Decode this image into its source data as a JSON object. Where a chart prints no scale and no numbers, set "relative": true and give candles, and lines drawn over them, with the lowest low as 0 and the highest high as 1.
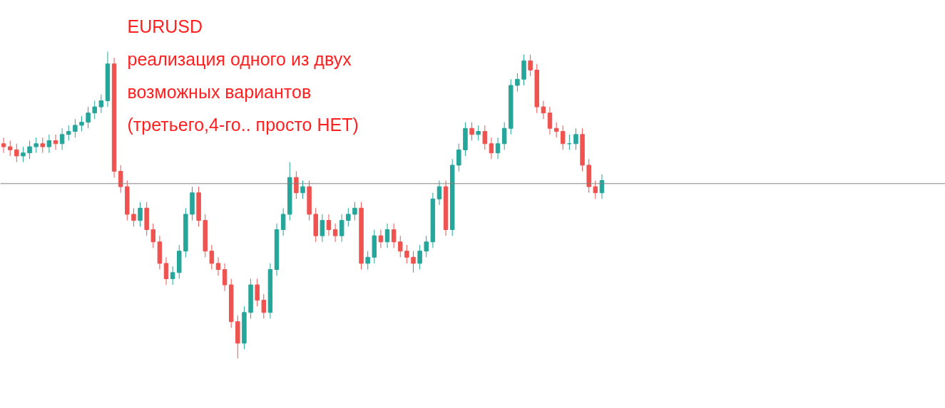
{
  "chart_data": {
    "type": "candlestick",
    "relative": true,
    "title": "EURUSD",
    "annotations": [
      "реализация одного из двух",
      "возможных вариантов",
      "(третьего,4-го.. просто НЕТ)"
    ],
    "colors": [
      "#ef5350",
      "#ef5350",
      "#ef5350",
      "#26a69a",
      "#26a69a",
      "#26a69a",
      "#ef5350",
      "#26a69a",
      "#ef5350",
      "#26a69a",
      "#26a69a",
      "#26a69a",
      "#26a69a",
      "#26a69a",
      "#26a69a",
      "#26a69a",
      "#26a69a",
      "#ef5350",
      "#ef5350",
      "#ef5350",
      "#ef5350",
      "#26a69a",
      "#ef5350",
      "#ef5350",
      "#ef5350",
      "#ef5350",
      "#26a69a",
      "#26a69a",
      "#26a69a",
      "#26a69a",
      "#ef5350",
      "#ef5350",
      "#ef5350",
      "#ef5350",
      "#ef5350",
      "#ef5350",
      "#ef5350",
      "#26a69a",
      "#26a69a",
      "#ef5350",
      "#ef5350",
      "#26a69a",
      "#26a69a",
      "#26a69a",
      "#26a69a",
      "#ef5350",
      "#26a69a",
      "#ef5350",
      "#ef5350",
      "#26a69a",
      "#ef5350",
      "#ef5350",
      "#26a69a",
      "#26a69a",
      "#26a69a",
      "#ef5350",
      "#26a69a",
      "#26a69a",
      "#ef5350",
      "#26a69a",
      "#ef5350",
      "#ef5350",
      "#ef5350",
      "#ef5350",
      "#26a69a",
      "#26a69a",
      "#26a69a",
      "#26a69a",
      "#ef5350",
      "#26a69a",
      "#26a69a",
      "#26a69a",
      "#ef5350",
      "#26a69a",
      "#ef5350",
      "#ef5350",
      "#26a69a",
      "#26a69a",
      "#26a69a",
      "#26a69a",
      "#26a69a",
      "#ef5350",
      "#ef5350",
      "#ef5350",
      "#ef5350",
      "#ef5350",
      "#ef5350",
      "#26a69a",
      "#26a69a",
      "#ef5350",
      "#ef5350",
      "#ef5350",
      "#26a69a"
    ],
    "categories": [
      null,
      null,
      null,
      null,
      null,
      null,
      null,
      null,
      null,
      null,
      null,
      null,
      null,
      null,
      null,
      null,
      null,
      null,
      null,
      null,
      null,
      null,
      null,
      null,
      null,
      null,
      null,
      null,
      null,
      null,
      null,
      null,
      null,
      null,
      null,
      null,
      null,
      null,
      null,
      null,
      null,
      null,
      null,
      null,
      null,
      null,
      null,
      null,
      null,
      null,
      null,
      null,
      null,
      null,
      null,
      null,
      null,
      null,
      null,
      null,
      null,
      null,
      null,
      null,
      null,
      null,
      null,
      null,
      null,
      null,
      null,
      null,
      null,
      null,
      null,
      null,
      null,
      null,
      null,
      null,
      null,
      null,
      null,
      null,
      null,
      null,
      null,
      null,
      null,
      null,
      null,
      null,
      null
    ],
    "ref_lines": [
      {
        "axis": "y",
        "value": 0.57,
        "color": "#808080"
      }
    ],
    "ohlc": [
      [
        0.7,
        0.72,
        0.67,
        0.69
      ],
      [
        0.69,
        0.71,
        0.66,
        0.68
      ],
      [
        0.68,
        0.7,
        0.64,
        0.66
      ],
      [
        0.66,
        0.69,
        0.64,
        0.67
      ],
      [
        0.67,
        0.71,
        0.65,
        0.69
      ],
      [
        0.69,
        0.72,
        0.67,
        0.7
      ],
      [
        0.7,
        0.72,
        0.67,
        0.69
      ],
      [
        0.69,
        0.73,
        0.67,
        0.71
      ],
      [
        0.71,
        0.73,
        0.68,
        0.7
      ],
      [
        0.7,
        0.75,
        0.68,
        0.73
      ],
      [
        0.73,
        0.76,
        0.71,
        0.74
      ],
      [
        0.74,
        0.78,
        0.72,
        0.76
      ],
      [
        0.76,
        0.79,
        0.74,
        0.77
      ],
      [
        0.77,
        0.82,
        0.75,
        0.8
      ],
      [
        0.8,
        0.84,
        0.78,
        0.82
      ],
      [
        0.82,
        0.86,
        0.8,
        0.84
      ],
      [
        0.84,
        1.0,
        0.82,
        0.96
      ],
      [
        0.96,
        0.98,
        0.59,
        0.61
      ],
      [
        0.61,
        0.63,
        0.54,
        0.56
      ],
      [
        0.56,
        0.58,
        0.45,
        0.47
      ],
      [
        0.47,
        0.49,
        0.43,
        0.45
      ],
      [
        0.45,
        0.51,
        0.43,
        0.49
      ],
      [
        0.49,
        0.51,
        0.4,
        0.42
      ],
      [
        0.42,
        0.44,
        0.36,
        0.38
      ],
      [
        0.38,
        0.4,
        0.29,
        0.31
      ],
      [
        0.31,
        0.33,
        0.24,
        0.26
      ],
      [
        0.26,
        0.3,
        0.24,
        0.28
      ],
      [
        0.28,
        0.37,
        0.26,
        0.35
      ],
      [
        0.35,
        0.49,
        0.33,
        0.47
      ],
      [
        0.47,
        0.56,
        0.45,
        0.54
      ],
      [
        0.54,
        0.56,
        0.43,
        0.45
      ],
      [
        0.45,
        0.47,
        0.33,
        0.35
      ],
      [
        0.35,
        0.37,
        0.29,
        0.31
      ],
      [
        0.31,
        0.33,
        0.27,
        0.29
      ],
      [
        0.29,
        0.31,
        0.22,
        0.24
      ],
      [
        0.24,
        0.26,
        0.1,
        0.12
      ],
      [
        0.12,
        0.14,
        0.0,
        0.05
      ],
      [
        0.05,
        0.17,
        0.03,
        0.15
      ],
      [
        0.15,
        0.26,
        0.13,
        0.24
      ],
      [
        0.24,
        0.26,
        0.17,
        0.19
      ],
      [
        0.19,
        0.21,
        0.13,
        0.15
      ],
      [
        0.15,
        0.31,
        0.13,
        0.29
      ],
      [
        0.29,
        0.44,
        0.27,
        0.42
      ],
      [
        0.42,
        0.49,
        0.4,
        0.47
      ],
      [
        0.47,
        0.64,
        0.45,
        0.59
      ],
      [
        0.59,
        0.61,
        0.52,
        0.54
      ],
      [
        0.54,
        0.58,
        0.52,
        0.56
      ],
      [
        0.56,
        0.58,
        0.45,
        0.47
      ],
      [
        0.47,
        0.49,
        0.38,
        0.4
      ],
      [
        0.4,
        0.47,
        0.38,
        0.45
      ],
      [
        0.45,
        0.47,
        0.4,
        0.42
      ],
      [
        0.42,
        0.44,
        0.38,
        0.4
      ],
      [
        0.4,
        0.47,
        0.38,
        0.45
      ],
      [
        0.45,
        0.49,
        0.43,
        0.47
      ],
      [
        0.47,
        0.51,
        0.45,
        0.49
      ],
      [
        0.49,
        0.51,
        0.29,
        0.31
      ],
      [
        0.31,
        0.35,
        0.29,
        0.33
      ],
      [
        0.33,
        0.42,
        0.31,
        0.4
      ],
      [
        0.4,
        0.42,
        0.36,
        0.38
      ],
      [
        0.38,
        0.44,
        0.36,
        0.42
      ],
      [
        0.42,
        0.44,
        0.36,
        0.38
      ],
      [
        0.38,
        0.4,
        0.33,
        0.35
      ],
      [
        0.35,
        0.37,
        0.31,
        0.33
      ],
      [
        0.33,
        0.35,
        0.28,
        0.31
      ],
      [
        0.31,
        0.37,
        0.29,
        0.35
      ],
      [
        0.35,
        0.4,
        0.33,
        0.38
      ],
      [
        0.38,
        0.54,
        0.36,
        0.52
      ],
      [
        0.52,
        0.58,
        0.5,
        0.56
      ],
      [
        0.56,
        0.58,
        0.4,
        0.42
      ],
      [
        0.42,
        0.65,
        0.4,
        0.63
      ],
      [
        0.63,
        0.7,
        0.61,
        0.68
      ],
      [
        0.68,
        0.77,
        0.66,
        0.75
      ],
      [
        0.75,
        0.77,
        0.71,
        0.73
      ],
      [
        0.73,
        0.76,
        0.71,
        0.74
      ],
      [
        0.74,
        0.76,
        0.68,
        0.7
      ],
      [
        0.7,
        0.72,
        0.65,
        0.67
      ],
      [
        0.67,
        0.72,
        0.65,
        0.7
      ],
      [
        0.7,
        0.77,
        0.68,
        0.75
      ],
      [
        0.75,
        0.91,
        0.73,
        0.89
      ],
      [
        0.89,
        0.93,
        0.87,
        0.91
      ],
      [
        0.91,
        0.99,
        0.89,
        0.97
      ],
      [
        0.97,
        0.99,
        0.92,
        0.94
      ],
      [
        0.94,
        0.96,
        0.8,
        0.82
      ],
      [
        0.82,
        0.84,
        0.78,
        0.8
      ],
      [
        0.8,
        0.82,
        0.73,
        0.75
      ],
      [
        0.75,
        0.77,
        0.72,
        0.74
      ],
      [
        0.74,
        0.76,
        0.68,
        0.7
      ],
      [
        0.7,
        0.73,
        0.68,
        0.7
      ],
      [
        0.7,
        0.75,
        0.68,
        0.73
      ],
      [
        0.73,
        0.75,
        0.61,
        0.63
      ],
      [
        0.63,
        0.65,
        0.54,
        0.56
      ],
      [
        0.56,
        0.58,
        0.52,
        0.54
      ],
      [
        0.54,
        0.6,
        0.52,
        0.58
      ]
    ]
  }
}
